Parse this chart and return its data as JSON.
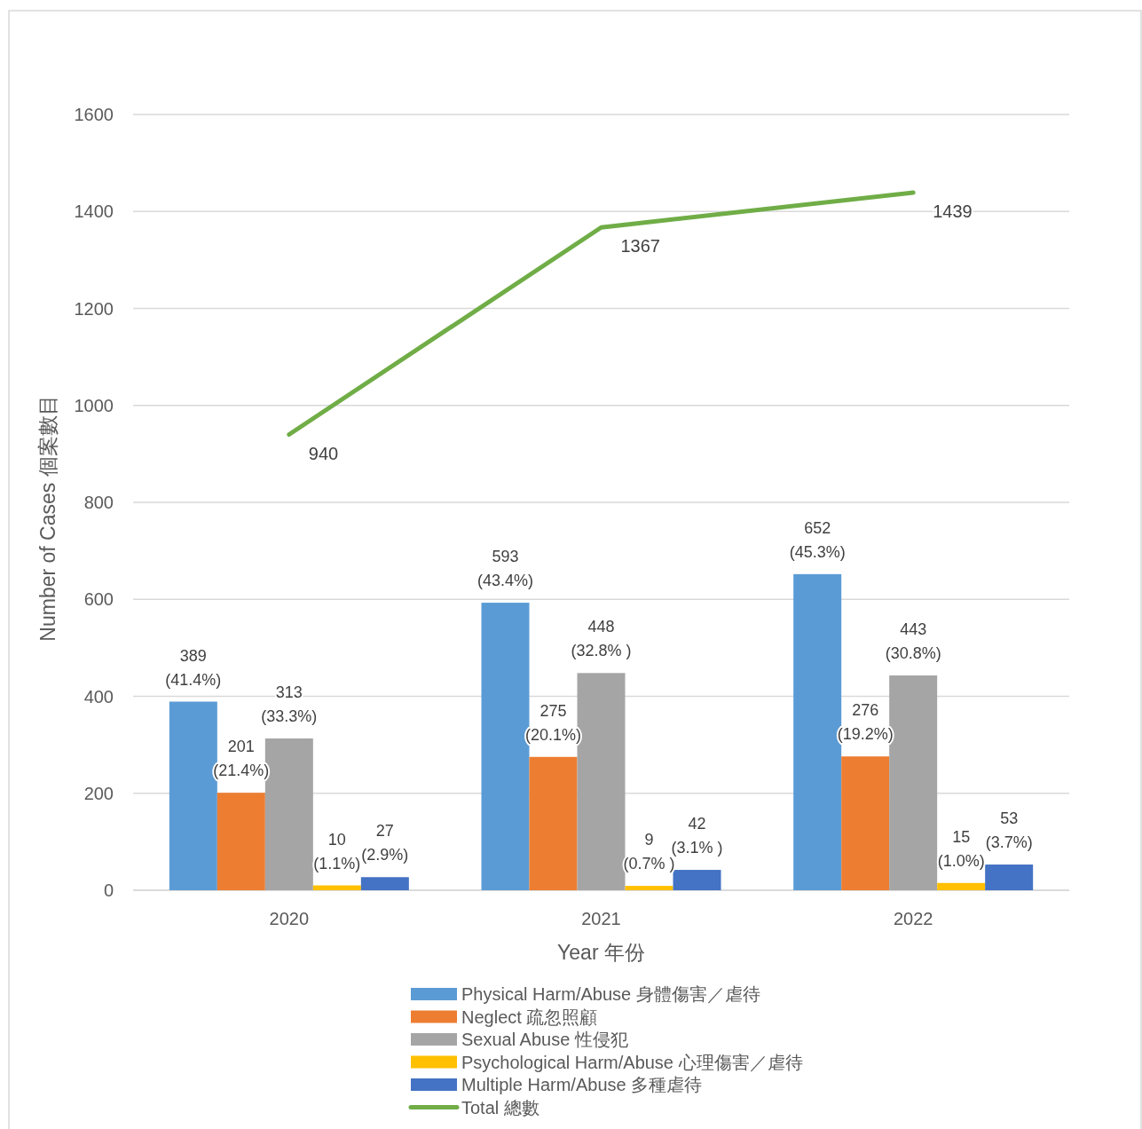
{
  "chart_data": {
    "type": "bar",
    "xlabel": "Year  年份",
    "ylabel": "Number of Cases  個案數目",
    "categories": [
      "2020",
      "2021",
      "2022"
    ],
    "ylim": [
      0,
      1600
    ],
    "yticks": [
      0,
      200,
      400,
      600,
      800,
      1000,
      1200,
      1400,
      1600
    ],
    "grid": "y",
    "legend": "bottom",
    "series": [
      {
        "name": "Physical Harm/Abuse 身體傷害／虐待",
        "color": "#5b9bd5",
        "values": [
          389,
          593,
          652
        ],
        "value_labels": [
          "389\n(41.4%)",
          "593\n(43.4%)",
          "652\n(45.3%)"
        ]
      },
      {
        "name": "Neglect 疏忽照顧",
        "color": "#ed7d31",
        "values": [
          201,
          275,
          276
        ],
        "value_labels": [
          "201\n(21.4%)",
          "275\n(20.1%)",
          "276\n(19.2%)"
        ]
      },
      {
        "name": "Sexual Abuse 性侵犯",
        "color": "#a5a5a5",
        "values": [
          313,
          448,
          443
        ],
        "value_labels": [
          "313\n(33.3%)",
          "448\n(32.8% )",
          "443\n(30.8%)"
        ]
      },
      {
        "name": "Psychological Harm/Abuse 心理傷害／虐待",
        "color": "#ffc000",
        "values": [
          10,
          9,
          15
        ],
        "value_labels": [
          "10\n(1.1%)",
          "9\n(0.7% )",
          "15\n(1.0%)"
        ]
      },
      {
        "name": "Multiple Harm/Abuse 多種虐待",
        "color": "#4472c4",
        "values": [
          27,
          42,
          53
        ],
        "value_labels": [
          "27\n(2.9%)",
          "42\n(3.1% )",
          "53\n(3.7%)"
        ]
      },
      {
        "name": "Total 總數",
        "type": "line",
        "color": "#70ad47",
        "values": [
          940,
          1367,
          1439
        ],
        "value_labels": [
          "940",
          "1367",
          "1439"
        ]
      }
    ]
  }
}
